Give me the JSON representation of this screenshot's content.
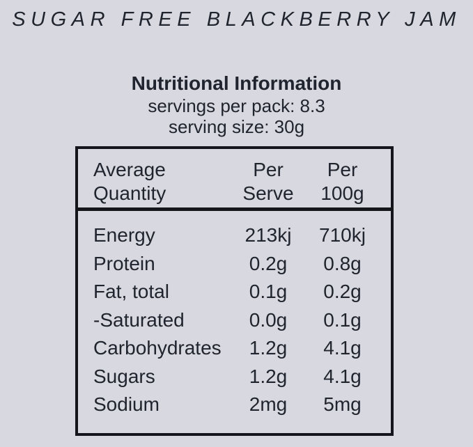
{
  "page": {
    "background_color": "#d8d9e0",
    "text_color": "#20242e",
    "border_color": "#14161c"
  },
  "title": "SUGAR FREE BLACKBERRY JAM",
  "info": {
    "heading": "Nutritional Information",
    "servings_per_pack": "servings per pack: 8.3",
    "serving_size": "serving size: 30g"
  },
  "table": {
    "header": {
      "col1": [
        "Average",
        "Quantity"
      ],
      "col2": [
        "Per",
        "Serve"
      ],
      "col3": [
        "Per",
        "100g"
      ]
    },
    "rows": [
      {
        "name": "Energy",
        "per_serve": "213kj",
        "per_100g": "710kj"
      },
      {
        "name": "Protein",
        "per_serve": "0.2g",
        "per_100g": "0.8g"
      },
      {
        "name": "Fat, total",
        "per_serve": "0.1g",
        "per_100g": "0.2g"
      },
      {
        "name": "-Saturated",
        "per_serve": "0.0g",
        "per_100g": "0.1g"
      },
      {
        "name": "Carbohydrates",
        "per_serve": "1.2g",
        "per_100g": "4.1g"
      },
      {
        "name": "Sugars",
        "per_serve": "1.2g",
        "per_100g": "4.1g"
      },
      {
        "name": "Sodium",
        "per_serve": "2mg",
        "per_100g": "5mg"
      }
    ]
  }
}
